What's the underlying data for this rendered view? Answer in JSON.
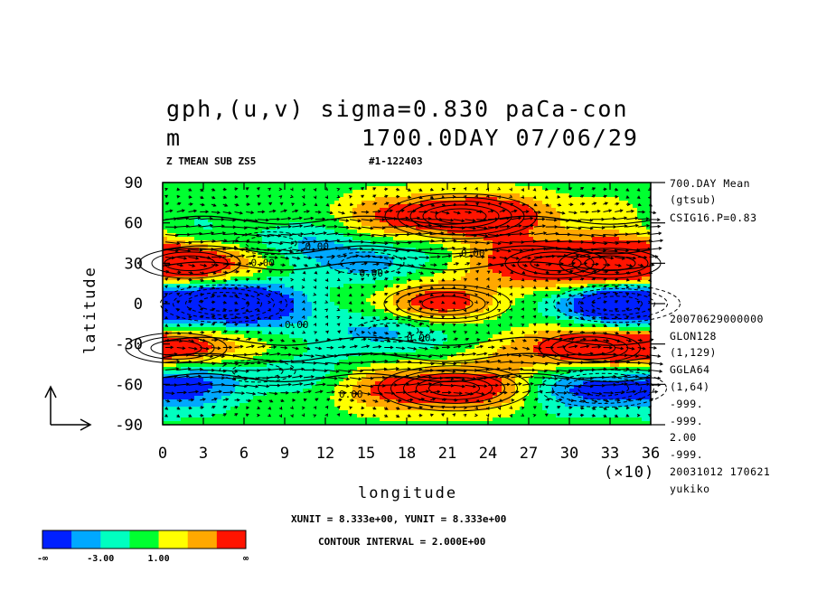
{
  "chart_data": {
    "type": "heatmap",
    "title": "gph,(u,v) sigma=0.830 paCa-con",
    "title_line2_left": "m",
    "title_line2_right": "1700.0DAY 07/06/29",
    "subtitle_left": "Z TMEAN SUB ZS5",
    "subtitle_right": "#1-122403",
    "xlabel": "longitude",
    "ylabel": "latitude",
    "x_multiplier": "(×10)",
    "xlim": [
      0,
      36
    ],
    "ylim": [
      -90,
      90
    ],
    "x_ticks": [
      "0",
      "3",
      "6",
      "9",
      "12",
      "15",
      "18",
      "21",
      "24",
      "27",
      "30",
      "33",
      "36"
    ],
    "y_ticks": [
      "90",
      "60",
      "30",
      "0",
      "-30",
      "-60",
      "-90"
    ],
    "contour_labels": [
      "0.00",
      "0.00",
      "0.00",
      "0.00",
      "0.00",
      "0.00",
      "0.00"
    ],
    "side_info": [
      "700.DAY Mean",
      "(gtsub)",
      "CSIG16.P=0.83",
      "20070629000000",
      "GLON128",
      "(1,129)",
      "GGLA64",
      "(1,64)",
      "-999.",
      "-999.",
      "2.00",
      "-999.",
      "20031012 170621",
      "yukiko"
    ],
    "unit_text": "XUNIT = 8.333e+00, YUNIT = 8.333e+00",
    "contour_interval_text": "CONTOUR INTERVAL = 2.000E+00",
    "colorbar": {
      "colors": [
        "#0020ff",
        "#00a8ff",
        "#00ffc0",
        "#00ff30",
        "#ffff00",
        "#ffa800",
        "#ff1400"
      ],
      "labels": [
        "-∞",
        "-3.00",
        "1.00",
        "∞"
      ]
    },
    "color_levels": [
      -5,
      -3,
      -1,
      1,
      3,
      5
    ],
    "anomaly_centers": [
      {
        "lon": 220,
        "lat": 65,
        "value": 9
      },
      {
        "lon": 210,
        "lat": 0,
        "value": 7
      },
      {
        "lon": 215,
        "lat": -63,
        "value": 9
      },
      {
        "lon": 20,
        "lat": 30,
        "value": 6
      },
      {
        "lon": 290,
        "lat": 30,
        "value": 6
      },
      {
        "lon": 330,
        "lat": 30,
        "value": 6
      },
      {
        "lon": 10,
        "lat": -33,
        "value": 5
      },
      {
        "lon": 315,
        "lat": -33,
        "value": 6
      },
      {
        "lon": 45,
        "lat": 0,
        "value": -8
      },
      {
        "lon": 335,
        "lat": 0,
        "value": -8
      },
      {
        "lon": 325,
        "lat": -63,
        "value": -8
      },
      {
        "lon": 150,
        "lat": 30,
        "value": -4
      },
      {
        "lon": 170,
        "lat": -20,
        "value": -4
      },
      {
        "lon": 80,
        "lat": 45,
        "value": -3
      },
      {
        "lon": 70,
        "lat": -50,
        "value": -3
      }
    ]
  }
}
